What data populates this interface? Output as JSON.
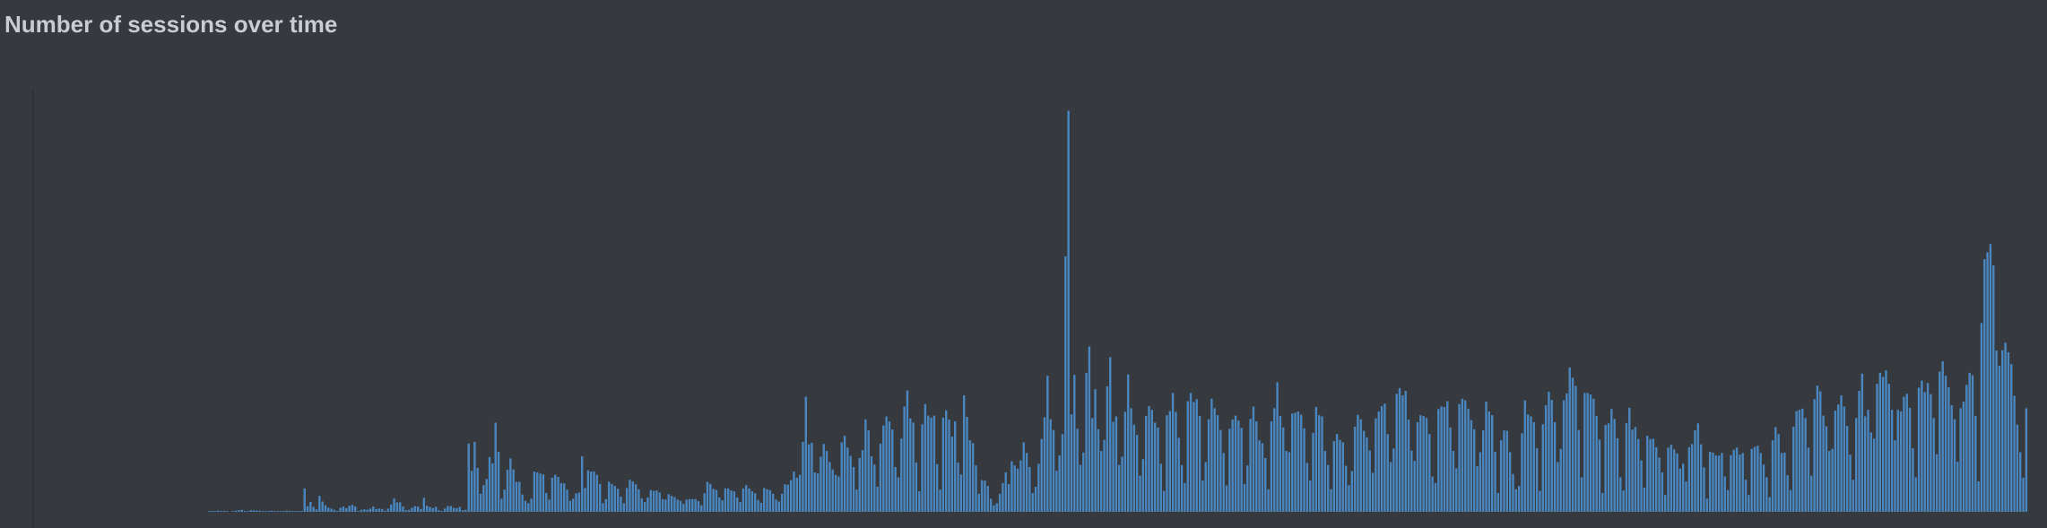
{
  "title": "Number of sessions over time",
  "colors": {
    "background": "#363a3f",
    "bar": "#4a86bf",
    "axis": "#2c2f33"
  },
  "chart_data": {
    "type": "bar",
    "title": "Number of sessions over time",
    "xlabel": "",
    "ylabel": "",
    "grid": false,
    "legend": "none",
    "ylim": [
      0,
      100
    ],
    "values": [
      0,
      0,
      0,
      0,
      0,
      0,
      0,
      0,
      0,
      0,
      0,
      0,
      0,
      0,
      0,
      0,
      0,
      0,
      0,
      0,
      0,
      0,
      0,
      0,
      0,
      0,
      0,
      0,
      0,
      0,
      0,
      0,
      0,
      0,
      0,
      0,
      0,
      0,
      0,
      0,
      0,
      0,
      0,
      0,
      0,
      0,
      0,
      0,
      0,
      0,
      0,
      0,
      0,
      0,
      0,
      0,
      0,
      0,
      0.1,
      0.2,
      0.2,
      0.3,
      0.2,
      0.2,
      0.1,
      0,
      0.1,
      0.3,
      0.4,
      0.5,
      0.2,
      0.1,
      0.4,
      0.4,
      0.3,
      0.3,
      0.2,
      0.1,
      0.2,
      0.3,
      0.2,
      0.1,
      0.1,
      0.2,
      0.3,
      0.2,
      0.1,
      0.1,
      0.2,
      0.2,
      5.7,
      1.4,
      2.4,
      1.2,
      0.6,
      3.9,
      2.5,
      1.6,
      1,
      0.8,
      0.5,
      0.2,
      1,
      1.3,
      0.9,
      1.5,
      1.7,
      1.3,
      0.1,
      0.5,
      0.6,
      0.5,
      0.8,
      1.3,
      0.7,
      0.8,
      0.7,
      0.3,
      0.8,
      1.8,
      3.3,
      2.3,
      2.3,
      1.3,
      0.4,
      0.5,
      1,
      1.4,
      1.3,
      0.7,
      3.4,
      1.5,
      1.2,
      0.9,
      1.2,
      0.4,
      0.2,
      0.8,
      1.4,
      1.4,
      1,
      0.9,
      1.2,
      0.4,
      0.5,
      16.6,
      10,
      17,
      10.7,
      4.4,
      6.5,
      8,
      13.3,
      11.8,
      21.7,
      14.6,
      3.2,
      5.4,
      10.2,
      13,
      10.3,
      7.3,
      7.3,
      4.2,
      2.7,
      2.1,
      3.2,
      9.8,
      9.6,
      9.3,
      9.1,
      4.6,
      3,
      8.3,
      9,
      8.5,
      7,
      6.9,
      5.4,
      2.7,
      3.2,
      4.5,
      4.7,
      13.5,
      5.8,
      10.1,
      9.8,
      9.8,
      9,
      6.8,
      2.1,
      3.1,
      7.3,
      6.8,
      6.3,
      5.6,
      3.7,
      2.1,
      5.8,
      7.8,
      7.4,
      6.7,
      5.5,
      3.3,
      2.4,
      3.5,
      5.3,
      5.1,
      5.2,
      4.7,
      3.1,
      3,
      4.3,
      3.9,
      3.6,
      3,
      2.7,
      1.9,
      3,
      3.1,
      3.1,
      3.1,
      2.6,
      1.6,
      4.5,
      7.3,
      6.8,
      5.6,
      5.3,
      3.5,
      2.8,
      5.7,
      5.7,
      5.2,
      5,
      3.5,
      2.4,
      5.7,
      6.5,
      5.7,
      5,
      4.5,
      2.9,
      2.2,
      5.8,
      5.5,
      5.3,
      4.4,
      3,
      2.5,
      4.4,
      6.7,
      6.6,
      7.7,
      9.8,
      8.3,
      9,
      17,
      28,
      16.4,
      16.8,
      9.6,
      9.4,
      13.4,
      16.5,
      14.8,
      12.1,
      10.3,
      9,
      8.6,
      16.9,
      18.5,
      15.6,
      13.6,
      10.9,
      5.4,
      13.1,
      15,
      22.5,
      19.8,
      13.5,
      11.5,
      6.1,
      16.6,
      21,
      23.2,
      22,
      20,
      10.9,
      8.4,
      17.8,
      25.6,
      29.5,
      22.7,
      21.7,
      12,
      5,
      21.3,
      26.2,
      23.4,
      22.9,
      23.4,
      11.6,
      5.4,
      22.9,
      24.7,
      22.4,
      18.3,
      22,
      12,
      9.1,
      28.3,
      23.1,
      17.4,
      16.7,
      11.3,
      4.4,
      7.7,
      7.6,
      6.3,
      3.2,
      1.6,
      2.1,
      4.4,
      7,
      9.6,
      6.8,
      12.3,
      11.3,
      10.5,
      12.5,
      16.9,
      14.3,
      10.9,
      4.6,
      6.1,
      11.7,
      17.7,
      23,
      33.1,
      22.5,
      19.9,
      10,
      13.7,
      18.9,
      62.1,
      97.5,
      23.7,
      33.3,
      20.2,
      11.4,
      14.4,
      33.8,
      40.2,
      22.8,
      29.8,
      20.1,
      14.8,
      17.5,
      30.5,
      37.6,
      21.9,
      23.2,
      11.4,
      13.4,
      24.3,
      33.4,
      25.2,
      21.2,
      18.7,
      8.8,
      12.8,
      23.3,
      25.7,
      24.8,
      21.7,
      20.5,
      11.7,
      5.1,
      23.5,
      24.5,
      28.9,
      24.3,
      18,
      11.4,
      7,
      26.9,
      28.9,
      26.7,
      27.4,
      23.3,
      7.6,
      12.1,
      22.5,
      27.5,
      25.2,
      23.5,
      19.9,
      14.3,
      6.4,
      20.2,
      22.4,
      23.4,
      22.2,
      20.4,
      6.8,
      11.3,
      22.6,
      25.6,
      22,
      17.4,
      16.7,
      13.1,
      5.5,
      22,
      25.2,
      31.5,
      23.3,
      20.5,
      14.8,
      14.5,
      23.9,
      24.1,
      24.4,
      23.6,
      20.3,
      11.9,
      7.6,
      19.2,
      25.5,
      23.5,
      23.2,
      14.8,
      11.4,
      5.5,
      17.2,
      18.9,
      17.5,
      16.9,
      11.2,
      6.5,
      9.9,
      20.7,
      23.6,
      22.5,
      19.7,
      18.1,
      14.9,
      9.5,
      22.7,
      24.4,
      25.7,
      26.3,
      18.9,
      12.1,
      15.4,
      28.7,
      30.1,
      28.3,
      29.4,
      22.4,
      14.9,
      12.4,
      21.8,
      23.5,
      23.3,
      22.8,
      18.9,
      8.6,
      7,
      25,
      25.6,
      25.5,
      26.9,
      20.5,
      14.8,
      10.6,
      26.2,
      27.5,
      27.1,
      25.1,
      22.3,
      20.1,
      11.1,
      14.5,
      19.8,
      26.8,
      24.4,
      23.5,
      14.6,
      4.6,
      17.4,
      19.8,
      19.7,
      14.5,
      9.2,
      5.5,
      6.3,
      19.1,
      27.1,
      23.7,
      23.2,
      21.8,
      15.5,
      5.1,
      21.3,
      25.9,
      29.2,
      27.2,
      21.8,
      12.1,
      15.3,
      27.1,
      28.8,
      35.1,
      32.6,
      30.6,
      19.9,
      8.4,
      28.9,
      28.9,
      28.5,
      27.5,
      23.3,
      17.6,
      4.6,
      21.1,
      21.5,
      25,
      22.6,
      17.9,
      8.4,
      5.2,
      21.6,
      25.3,
      20,
      20.6,
      17.7,
      12.5,
      5.9,
      18.5,
      17.7,
      17.8,
      15.7,
      13.2,
      9.6,
      4.1,
      15.6,
      16.3,
      15.2,
      14.2,
      10.5,
      11.7,
      7.4,
      15.7,
      16.5,
      19.8,
      21.5,
      16.4,
      10.8,
      3.2,
      14.6,
      14.4,
      13.7,
      13.7,
      14.3,
      8.6,
      5.3,
      13.8,
      15.1,
      15.6,
      13.9,
      14.3,
      7.8,
      4.1,
      15.3,
      15.8,
      16.1,
      14.3,
      11.5,
      8.4,
      3.6,
      17.4,
      20.6,
      18.9,
      14.3,
      14.4,
      8.9,
      5.3,
      20.7,
      24.5,
      24.8,
      25.1,
      22.8,
      15.6,
      8.8,
      27.4,
      30.7,
      29.3,
      23.4,
      20.8,
      14.8,
      15.3,
      24.6,
      26.1,
      28.3,
      25.6,
      20.9,
      13.9,
      7.8,
      22.8,
      29.4,
      33.6,
      23.2,
      24.8,
      19.3,
      17.8,
      31.1,
      33.8,
      32.8,
      34.4,
      31.1,
      24.8,
      17.4,
      24.8,
      24.4,
      28,
      28.7,
      25.3,
      15.5,
      8.4,
      30.2,
      31.9,
      29.1,
      31.3,
      28.6,
      22.8,
      14,
      34.1,
      36.6,
      33.1,
      30.3,
      25.9,
      22.5,
      12.2,
      25.2,
      26.8,
      30.9,
      33.8,
      33.2,
      23.3,
      7.4,
      45.9,
      61.4,
      63.1,
      65.1,
      59.9,
      39.2,
      35.5,
      39.3,
      41.1,
      38.8,
      35.9,
      28.2,
      21.2,
      14.5,
      8.3,
      25.2
    ]
  }
}
